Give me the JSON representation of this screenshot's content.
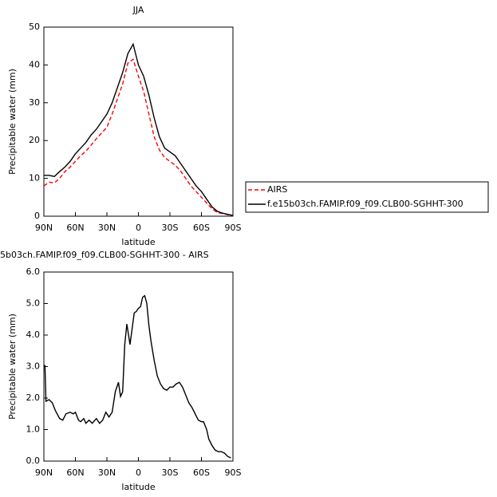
{
  "chart_data": [
    {
      "type": "line",
      "title": "JJA",
      "xlabel": "latitude",
      "ylabel": "Precipitable water (mm)",
      "x": [
        90,
        85,
        80,
        75,
        70,
        65,
        60,
        55,
        50,
        45,
        40,
        35,
        30,
        25,
        20,
        15,
        10,
        5,
        0,
        -5,
        -10,
        -15,
        -20,
        -25,
        -30,
        -35,
        -40,
        -45,
        -50,
        -55,
        -60,
        -65,
        -70,
        -75,
        -80,
        -85,
        -90
      ],
      "series": [
        {
          "name": "AIRS",
          "color": "#ff0000",
          "linestyle": "dashed",
          "values": [
            8,
            9,
            8.8,
            10,
            11.8,
            13,
            14.5,
            16,
            17.2,
            18.8,
            20.5,
            22,
            23.5,
            27,
            31,
            35,
            40.5,
            41.5,
            37,
            33,
            27,
            21,
            17.5,
            15.5,
            14.5,
            13.5,
            12,
            10,
            8,
            6.5,
            5,
            3.5,
            2,
            1,
            0.7,
            0.4,
            0.1
          ]
        },
        {
          "name": "f.e15b03ch.FAMIP.f09_f09.CLB00-SGHHT-300",
          "color": "#000000",
          "linestyle": "solid",
          "values": [
            10.8,
            10.8,
            10.5,
            11.8,
            13,
            14.5,
            16.5,
            18,
            19.5,
            21.5,
            23,
            25,
            27,
            30,
            34,
            38,
            43,
            45.5,
            40,
            37,
            32,
            26,
            21,
            18,
            17,
            16,
            14,
            12,
            10,
            8,
            6.5,
            4.5,
            2.5,
            1.3,
            0.8,
            0.5,
            0.2
          ]
        }
      ],
      "xlim": [
        90,
        -90
      ],
      "xticks": [
        {
          "value": 90,
          "label": "90N"
        },
        {
          "value": 60,
          "label": "60N"
        },
        {
          "value": 30,
          "label": "30N"
        },
        0,
        {
          "value": -30,
          "label": "30S"
        },
        {
          "value": -60,
          "label": "60S"
        },
        {
          "value": -90,
          "label": "90S"
        }
      ],
      "ylim": [
        0,
        50
      ],
      "yticks": [
        0,
        10,
        20,
        30,
        40,
        50
      ],
      "legend": "right"
    },
    {
      "type": "line",
      "title": "5b03ch.FAMIP.f09_f09.CLB00-SGHHT-300  -  AIRS",
      "xlabel": "latitude",
      "ylabel": "Precipitable water (mm)",
      "x": [
        89,
        88,
        85,
        82,
        79,
        75,
        72,
        69,
        65,
        62,
        60,
        57,
        55,
        52,
        50,
        47,
        44,
        40,
        37,
        34,
        31,
        28,
        25,
        22,
        19,
        17,
        15,
        13,
        11,
        8,
        6,
        4,
        2,
        0,
        -2,
        -4,
        -6,
        -8,
        -10,
        -12,
        -15,
        -18,
        -21,
        -24,
        -27,
        -30,
        -33,
        -36,
        -39,
        -42,
        -45,
        -48,
        -51,
        -54,
        -57,
        -60,
        -62,
        -65,
        -67,
        -70,
        -73,
        -76,
        -79,
        -82,
        -85,
        -88
      ],
      "values": [
        3.05,
        1.9,
        1.95,
        1.85,
        1.6,
        1.35,
        1.3,
        1.5,
        1.55,
        1.5,
        1.55,
        1.3,
        1.25,
        1.35,
        1.2,
        1.3,
        1.2,
        1.35,
        1.2,
        1.3,
        1.55,
        1.4,
        1.55,
        2.2,
        2.5,
        2.05,
        2.2,
        3.7,
        4.35,
        3.7,
        4.2,
        4.7,
        4.75,
        4.85,
        4.9,
        5.2,
        5.25,
        5.0,
        4.3,
        3.8,
        3.2,
        2.7,
        2.45,
        2.3,
        2.25,
        2.35,
        2.35,
        2.45,
        2.5,
        2.35,
        2.1,
        1.85,
        1.7,
        1.5,
        1.3,
        1.25,
        1.25,
        1.0,
        0.7,
        0.5,
        0.35,
        0.3,
        0.3,
        0.25,
        0.15,
        0.1
      ],
      "color": "#000000",
      "xlim": [
        90,
        -90
      ],
      "xticks": [
        {
          "value": 90,
          "label": "90N"
        },
        {
          "value": 60,
          "label": "60N"
        },
        {
          "value": 30,
          "label": "30N"
        },
        0,
        {
          "value": -30,
          "label": "30S"
        },
        {
          "value": -60,
          "label": "60S"
        },
        {
          "value": -90,
          "label": "90S"
        }
      ],
      "ylim": [
        0,
        6
      ],
      "yticks": [
        {
          "value": 0,
          "label": "0.0"
        },
        {
          "value": 1,
          "label": "1.0"
        },
        {
          "value": 2,
          "label": "2.0"
        },
        {
          "value": 3,
          "label": "3.0"
        },
        {
          "value": 4,
          "label": "4.0"
        },
        {
          "value": 5,
          "label": "5.0"
        },
        {
          "value": 6,
          "label": "6.0"
        }
      ]
    }
  ]
}
